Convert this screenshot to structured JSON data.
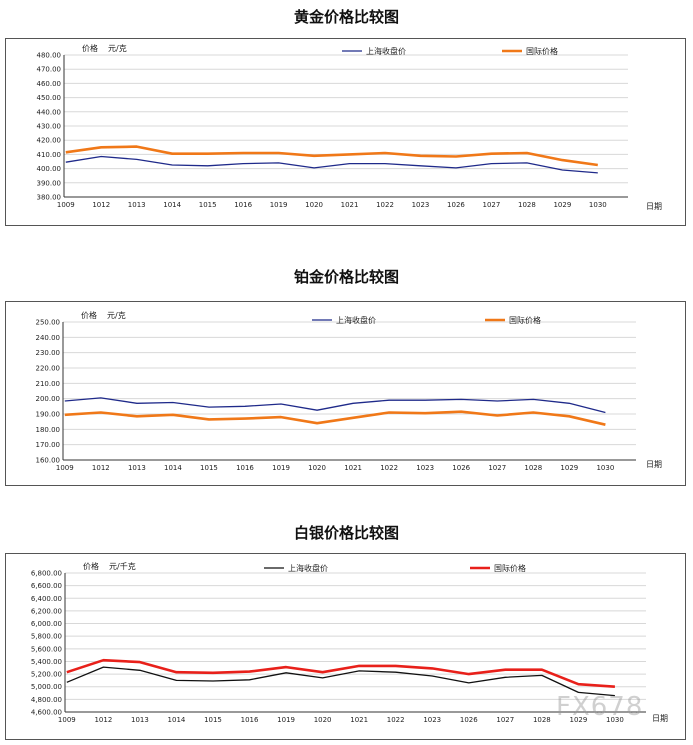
{
  "charts": [
    {
      "title": "黄金价格比较图",
      "ylabel_left": "价格",
      "unit": "元/克",
      "xlabel": "日期",
      "legend": [
        "上海收盘价",
        "国际价格"
      ],
      "colors": [
        "#1f2a8a",
        "#f07818"
      ],
      "decimals": 2,
      "ylim": [
        380,
        480
      ],
      "yticks": [
        "480.00",
        "470.00",
        "460.00",
        "450.00",
        "440.00",
        "430.00",
        "420.00",
        "410.00",
        "400.00",
        "390.00",
        "380.00"
      ]
    },
    {
      "title": "铂金价格比较图",
      "ylabel_left": "价格",
      "unit": "元/克",
      "xlabel": "日期",
      "legend": [
        "上海收盘价",
        "国际价格"
      ],
      "colors": [
        "#1f2a8a",
        "#f07818"
      ],
      "decimals": 2,
      "ylim": [
        160,
        250
      ],
      "yticks": [
        "250.00",
        "240.00",
        "230.00",
        "220.00",
        "210.00",
        "200.00",
        "190.00",
        "180.00",
        "170.00",
        "160.00"
      ]
    },
    {
      "title": "白银价格比较图",
      "ylabel_left": "价格",
      "unit": "元/千克",
      "xlabel": "日期",
      "legend": [
        "上海收盘价",
        "国际价格"
      ],
      "colors": [
        "#111111",
        "#e8201a"
      ],
      "decimals": 0,
      "ylim": [
        4600,
        6800
      ],
      "yticks": [
        "6,800.00",
        "6,600.00",
        "6,400.00",
        "6,200.00",
        "6,000.00",
        "5,800.00",
        "5,600.00",
        "5,400.00",
        "5,200.00",
        "5,000.00",
        "4,800.00",
        "4,600.00"
      ]
    }
  ],
  "chart_data": [
    {
      "type": "line",
      "title": "黄金价格比较图",
      "xlabel": "日期",
      "ylabel": "价格 元/克",
      "ylim": [
        380,
        480
      ],
      "categories": [
        "1009",
        "1012",
        "1013",
        "1014",
        "1015",
        "1016",
        "1019",
        "1020",
        "1021",
        "1022",
        "1023",
        "1026",
        "1027",
        "1028",
        "1029",
        "1030"
      ],
      "series": [
        {
          "name": "上海收盘价",
          "values": [
            404.5,
            408.5,
            406.5,
            402.5,
            402.0,
            403.5,
            404.0,
            400.5,
            403.5,
            403.5,
            402.0,
            400.5,
            403.5,
            404.0,
            399.0,
            397.0
          ]
        },
        {
          "name": "国际价格",
          "values": [
            411.5,
            415.0,
            415.5,
            410.5,
            410.5,
            411.0,
            411.0,
            409.0,
            410.0,
            411.0,
            409.0,
            408.5,
            410.5,
            411.0,
            406.0,
            402.5
          ]
        }
      ]
    },
    {
      "type": "line",
      "title": "铂金价格比较图",
      "xlabel": "日期",
      "ylabel": "价格 元/克",
      "ylim": [
        160,
        250
      ],
      "categories": [
        "1009",
        "1012",
        "1013",
        "1014",
        "1015",
        "1016",
        "1019",
        "1020",
        "1021",
        "1022",
        "1023",
        "1026",
        "1027",
        "1028",
        "1029",
        "1030"
      ],
      "series": [
        {
          "name": "上海收盘价",
          "values": [
            198.5,
            200.5,
            197.0,
            197.5,
            194.5,
            195.0,
            196.5,
            192.5,
            197.0,
            199.0,
            199.0,
            199.5,
            198.5,
            199.5,
            197.0,
            191.0
          ]
        },
        {
          "name": "国际价格",
          "values": [
            189.5,
            191.0,
            188.5,
            189.5,
            186.5,
            187.0,
            188.0,
            184.0,
            187.5,
            191.0,
            190.5,
            191.5,
            189.0,
            191.0,
            188.5,
            183.0
          ]
        }
      ]
    },
    {
      "type": "line",
      "title": "白银价格比较图",
      "xlabel": "日期",
      "ylabel": "价格 元/千克",
      "ylim": [
        4600,
        6800
      ],
      "categories": [
        "1009",
        "1012",
        "1013",
        "1014",
        "1015",
        "1016",
        "1019",
        "1020",
        "1021",
        "1022",
        "1023",
        "1026",
        "1027",
        "1028",
        "1029",
        "1030"
      ],
      "series": [
        {
          "name": "上海收盘价",
          "values": [
            5070,
            5310,
            5260,
            5100,
            5090,
            5110,
            5220,
            5140,
            5250,
            5230,
            5170,
            5060,
            5150,
            5180,
            4910,
            4860
          ]
        },
        {
          "name": "国际价格",
          "values": [
            5230,
            5420,
            5390,
            5230,
            5220,
            5240,
            5310,
            5230,
            5330,
            5330,
            5290,
            5200,
            5270,
            5270,
            5040,
            5000
          ]
        }
      ]
    }
  ],
  "watermark": "FX678"
}
